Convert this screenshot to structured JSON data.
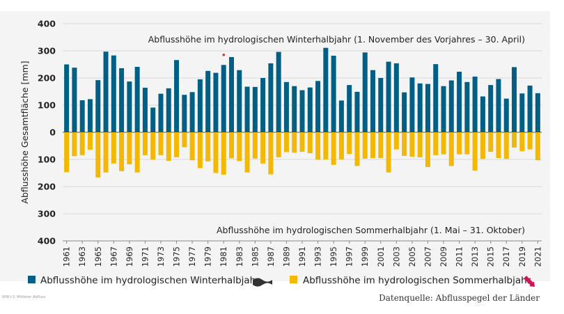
{
  "chart_data": {
    "type": "bar",
    "ylabel": "Abflusshöhe Gesamtfläche  [mm]",
    "y_tick_labels": [
      "400",
      "300",
      "200",
      "100",
      "0",
      "100",
      "200",
      "300",
      "400"
    ],
    "ylim": [
      -400,
      400
    ],
    "grid": "horizontal",
    "x_tick_labels": [
      "1961",
      "1963",
      "1965",
      "1967",
      "1969",
      "1971",
      "1973",
      "1975",
      "1977",
      "1979",
      "1981",
      "1983",
      "1985",
      "1987",
      "1989",
      "1991",
      "1993",
      "1995",
      "1997",
      "1999",
      "2001",
      "2003",
      "2005",
      "2007",
      "2009",
      "2011",
      "2013",
      "2015",
      "2017",
      "2019",
      "2021"
    ],
    "years": [
      1961,
      1962,
      1963,
      1964,
      1965,
      1966,
      1967,
      1968,
      1969,
      1970,
      1971,
      1972,
      1973,
      1974,
      1975,
      1976,
      1977,
      1978,
      1979,
      1980,
      1981,
      1982,
      1983,
      1984,
      1985,
      1986,
      1987,
      1988,
      1989,
      1990,
      1991,
      1992,
      1993,
      1994,
      1995,
      1996,
      1997,
      1998,
      1999,
      2000,
      2001,
      2002,
      2003,
      2004,
      2005,
      2006,
      2007,
      2008,
      2009,
      2010,
      2011,
      2012,
      2013,
      2014,
      2015,
      2016,
      2017,
      2018,
      2019,
      2020,
      2021
    ],
    "series": [
      {
        "name": "Abflusshöhe im hydrologischen Winterhalbjahr",
        "color": "#005f85",
        "values": [
          250,
          238,
          118,
          122,
          192,
          297,
          283,
          236,
          187,
          241,
          164,
          91,
          142,
          162,
          266,
          138,
          148,
          195,
          226,
          219,
          248,
          277,
          229,
          168,
          167,
          200,
          254,
          296,
          185,
          170,
          155,
          165,
          189,
          311,
          282,
          117,
          174,
          149,
          294,
          229,
          200,
          260,
          254,
          147,
          202,
          180,
          178,
          251,
          170,
          191,
          223,
          185,
          205,
          132,
          174,
          196,
          124,
          240,
          143,
          172,
          144
        ]
      },
      {
        "name": "Abflusshöhe im hydrologischen Sommerhalbjahr",
        "color": "#f5b800",
        "values": [
          -147,
          -88,
          -84,
          -64,
          -166,
          -148,
          -115,
          -143,
          -118,
          -148,
          -84,
          -101,
          -84,
          -105,
          -92,
          -55,
          -103,
          -132,
          -107,
          -150,
          -156,
          -96,
          -106,
          -148,
          -97,
          -115,
          -155,
          -92,
          -73,
          -75,
          -72,
          -77,
          -101,
          -100,
          -120,
          -100,
          -80,
          -124,
          -97,
          -95,
          -95,
          -148,
          -63,
          -87,
          -90,
          -92,
          -128,
          -84,
          -81,
          -124,
          -81,
          -81,
          -141,
          -98,
          -72,
          -95,
          -98,
          -56,
          -70,
          -63,
          -103
        ]
      }
    ],
    "annotations": [
      "Abflusshöhe im hydrologischen Winterhalbjahr (1. November des Vorjahres – 30. April)",
      "Abflusshöhe im hydrologischen Sommerhalbjahr (1. Mai – 31. Oktober)"
    ],
    "legend_position": "bottom",
    "trend_icons": [
      {
        "series": "Abflusshöhe im hydrologischen Winterhalbjahr",
        "icon": "trend-flat-icon",
        "color": "#333333"
      },
      {
        "series": "Abflusshöhe im hydrologischen Sommerhalbjahr",
        "icon": "trend-down-arrow-icon",
        "color": "#d4145a"
      }
    ],
    "marker": {
      "year": 1981,
      "value": 285,
      "color": "#d43a2c"
    }
  },
  "footer": {
    "source": "Datenquelle: Abflusspegel der Länder",
    "tiny_label": "WW-I-3: Mittlerer Abfluss"
  }
}
